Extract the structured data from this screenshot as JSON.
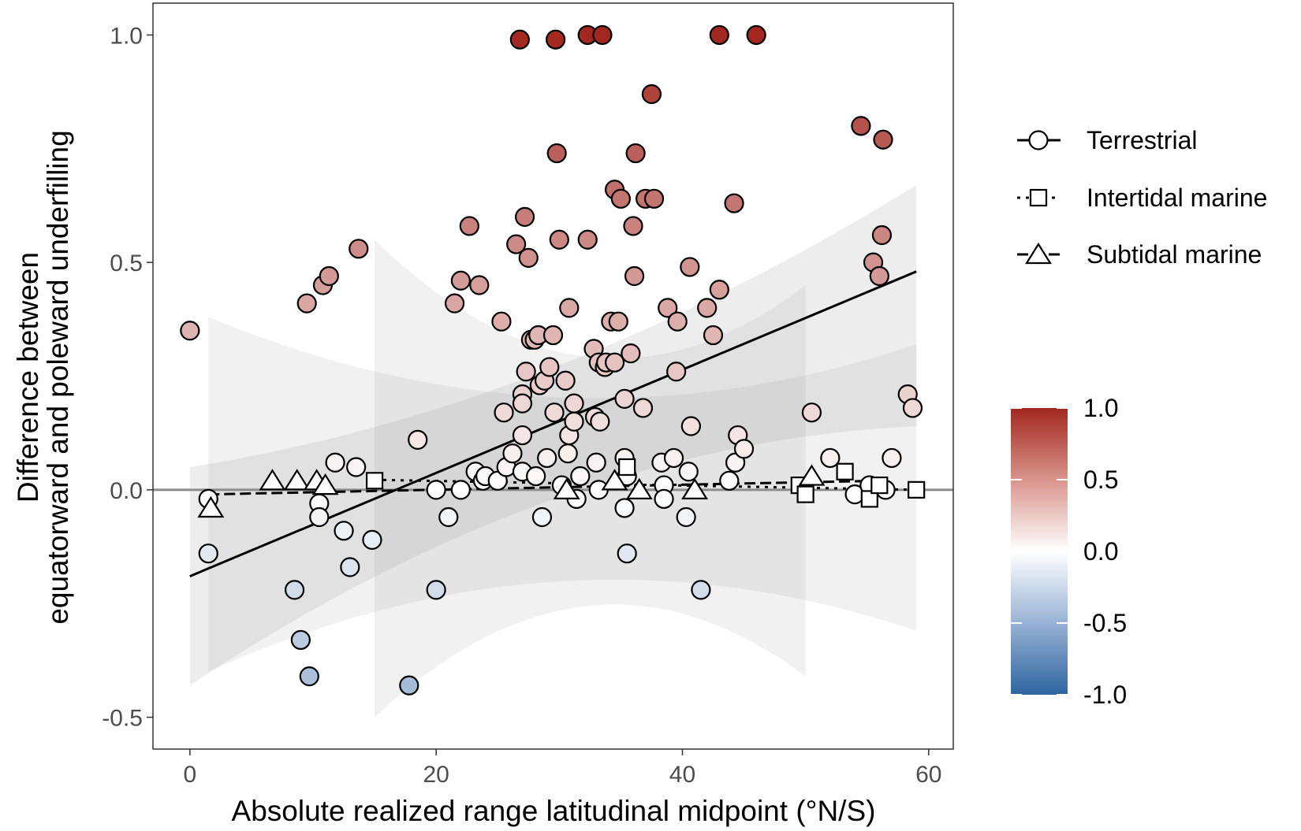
{
  "chart_data": {
    "type": "scatter",
    "xlabel": "Absolute realized range latitudinal midpoint (°N/S)",
    "ylabel_lines": [
      "Difference between",
      "equatorward and poleward underfilling"
    ],
    "xlim": [
      -3,
      62
    ],
    "ylim": [
      -0.57,
      1.07
    ],
    "x_ticks": [
      0,
      20,
      40,
      60
    ],
    "x_tick_labels": [
      "0",
      "20",
      "40",
      "60"
    ],
    "y_ticks": [
      -0.5,
      0.0,
      0.5,
      1.0
    ],
    "y_tick_labels": [
      "-0.5",
      "0.0",
      "0.5",
      "1.0"
    ],
    "grid": false,
    "reference_line_y": 0,
    "legend": {
      "position": "right",
      "entries": [
        {
          "label": "Terrestrial",
          "marker": "circle",
          "line": "solid"
        },
        {
          "label": "Intertidal marine",
          "marker": "square",
          "line": "dotted"
        },
        {
          "label": "Subtidal marine",
          "marker": "triangle",
          "line": "dashed"
        }
      ]
    },
    "colorbar": {
      "min": -1.0,
      "max": 1.0,
      "ticks": [
        1.0,
        0.5,
        0.0,
        -0.5,
        -1.0
      ],
      "tick_labels": [
        "1.0",
        "0.5",
        "0.0",
        "-0.5",
        "-1.0"
      ],
      "colors": {
        "low": "#2e65a0",
        "mid": "#ffffff",
        "high": "#a2271f"
      }
    },
    "series": [
      {
        "name": "Terrestrial",
        "marker": "circle",
        "trend": {
          "x": [
            0,
            59
          ],
          "y": [
            -0.19,
            0.48
          ]
        },
        "ci": {
          "x": [
            0,
            59
          ],
          "lower": [
            -0.43,
            0.14
          ],
          "upper": [
            0.05,
            0.67
          ]
        },
        "points": [
          [
            0,
            0.35
          ],
          [
            1.5,
            -0.02
          ],
          [
            1.5,
            -0.14
          ],
          [
            8.5,
            -0.22
          ],
          [
            9,
            -0.33
          ],
          [
            9.5,
            0.41
          ],
          [
            9.7,
            -0.41
          ],
          [
            10.5,
            -0.03
          ],
          [
            10.5,
            -0.06
          ],
          [
            10.8,
            0.45
          ],
          [
            11.3,
            0.47
          ],
          [
            11.8,
            0.06
          ],
          [
            12.5,
            -0.09
          ],
          [
            13,
            -0.17
          ],
          [
            13.5,
            0.05
          ],
          [
            13.7,
            0.53
          ],
          [
            14.8,
            -0.11
          ],
          [
            17.8,
            -0.43
          ],
          [
            18.5,
            0.11
          ],
          [
            20,
            -0.22
          ],
          [
            20,
            0.0
          ],
          [
            21,
            -0.06
          ],
          [
            21.5,
            0.41
          ],
          [
            22,
            0.46
          ],
          [
            22,
            0.0
          ],
          [
            22.7,
            0.58
          ],
          [
            23.2,
            0.04
          ],
          [
            23.5,
            0.45
          ],
          [
            23.8,
            0.02
          ],
          [
            24,
            0.03
          ],
          [
            25,
            0.02
          ],
          [
            25.3,
            0.37
          ],
          [
            25.5,
            0.17
          ],
          [
            25.7,
            0.05
          ],
          [
            26.2,
            0.08
          ],
          [
            26.5,
            0.54
          ],
          [
            26.8,
            0.99
          ],
          [
            27,
            0.21
          ],
          [
            27,
            0.19
          ],
          [
            27,
            0.12
          ],
          [
            27,
            0.04
          ],
          [
            27.2,
            0.6
          ],
          [
            27.3,
            0.26
          ],
          [
            27.5,
            0.51
          ],
          [
            27.7,
            0.33
          ],
          [
            28,
            0.33
          ],
          [
            28.1,
            0.03
          ],
          [
            28.3,
            0.34
          ],
          [
            28.4,
            0.23
          ],
          [
            28.6,
            -0.06
          ],
          [
            28.8,
            0.24
          ],
          [
            29,
            0.07
          ],
          [
            29.2,
            0.27
          ],
          [
            29.5,
            0.34
          ],
          [
            29.6,
            0.17
          ],
          [
            29.7,
            0.99
          ],
          [
            29.8,
            0.74
          ],
          [
            30,
            0.55
          ],
          [
            30.2,
            0.01
          ],
          [
            30.5,
            0.24
          ],
          [
            30.7,
            0.08
          ],
          [
            30.8,
            0.12
          ],
          [
            30.8,
            0.4
          ],
          [
            31.2,
            0.15
          ],
          [
            31.2,
            0.19
          ],
          [
            31.4,
            -0.02
          ],
          [
            31.7,
            0.03
          ],
          [
            32.3,
            0.55
          ],
          [
            32.3,
            1.0
          ],
          [
            32.8,
            0.31
          ],
          [
            32.9,
            0.16
          ],
          [
            33,
            0.06
          ],
          [
            33.2,
            0.0
          ],
          [
            33.2,
            0.28
          ],
          [
            33.3,
            0.15
          ],
          [
            33.5,
            1.0
          ],
          [
            33.7,
            0.27
          ],
          [
            33.8,
            0.28
          ],
          [
            34.2,
            0.37
          ],
          [
            34.5,
            0.28
          ],
          [
            34.5,
            0.66
          ],
          [
            34.8,
            0.37
          ],
          [
            35,
            0.64
          ],
          [
            35.3,
            0.2
          ],
          [
            35.3,
            0.07
          ],
          [
            35.3,
            -0.04
          ],
          [
            35.5,
            0.03
          ],
          [
            35.5,
            -0.14
          ],
          [
            35.8,
            0.3
          ],
          [
            36,
            0.58
          ],
          [
            36.1,
            0.47
          ],
          [
            36.2,
            0.74
          ],
          [
            36.8,
            0.18
          ],
          [
            37,
            0.64
          ],
          [
            37.5,
            0.87
          ],
          [
            37.7,
            0.64
          ],
          [
            38.3,
            0.06
          ],
          [
            38.5,
            0.01
          ],
          [
            38.5,
            -0.02
          ],
          [
            38.8,
            0.4
          ],
          [
            39.3,
            0.07
          ],
          [
            39.5,
            0.26
          ],
          [
            39.6,
            0.37
          ],
          [
            40.3,
            -0.06
          ],
          [
            40.5,
            0.04
          ],
          [
            40.6,
            0.49
          ],
          [
            40.7,
            0.14
          ],
          [
            41.5,
            -0.22
          ],
          [
            42,
            0.4
          ],
          [
            42.5,
            0.34
          ],
          [
            43,
            0.44
          ],
          [
            43,
            1.0
          ],
          [
            43.8,
            0.02
          ],
          [
            44.2,
            0.63
          ],
          [
            44.3,
            0.06
          ],
          [
            44.5,
            0.12
          ],
          [
            45,
            0.09
          ],
          [
            46,
            1.0
          ],
          [
            50.5,
            0.17
          ],
          [
            52,
            0.07
          ],
          [
            54,
            -0.01
          ],
          [
            54.5,
            0.8
          ],
          [
            55.2,
            0.01
          ],
          [
            55.5,
            0.5
          ],
          [
            56,
            0.47
          ],
          [
            56.2,
            0.56
          ],
          [
            56.3,
            0.77
          ],
          [
            56.5,
            0.0
          ],
          [
            57,
            0.07
          ],
          [
            58.3,
            0.21
          ],
          [
            58.7,
            0.18
          ]
        ]
      },
      {
        "name": "Intertidal marine",
        "marker": "square",
        "trend": {
          "x": [
            15,
            59
          ],
          "y": [
            0.022,
            0.0
          ]
        },
        "ci": {
          "x": [
            15,
            50
          ],
          "lower": [
            -0.5,
            -0.41
          ],
          "upper": [
            0.55,
            0.45
          ]
        },
        "points": [
          [
            15,
            0.02
          ],
          [
            35.5,
            0.05
          ],
          [
            49.5,
            0.01
          ],
          [
            50,
            -0.01
          ],
          [
            53.2,
            0.04
          ],
          [
            55.2,
            -0.02
          ],
          [
            56,
            0.01
          ],
          [
            59,
            0.0
          ]
        ]
      },
      {
        "name": "Subtidal marine",
        "marker": "triangle",
        "trend": {
          "x": [
            1.5,
            56
          ],
          "y": [
            -0.01,
            0.02
          ]
        },
        "ci": {
          "x": [
            1.5,
            59
          ],
          "lower": [
            -0.4,
            -0.31
          ],
          "upper": [
            0.38,
            0.32
          ]
        },
        "points": [
          [
            1.7,
            -0.04
          ],
          [
            6.7,
            0.02
          ],
          [
            8.7,
            0.02
          ],
          [
            10.3,
            0.02
          ],
          [
            11,
            0.01
          ],
          [
            30.6,
            0.0
          ],
          [
            34.5,
            0.02
          ],
          [
            36.5,
            0.0
          ],
          [
            41,
            0.0
          ],
          [
            50.5,
            0.03
          ]
        ]
      }
    ]
  }
}
